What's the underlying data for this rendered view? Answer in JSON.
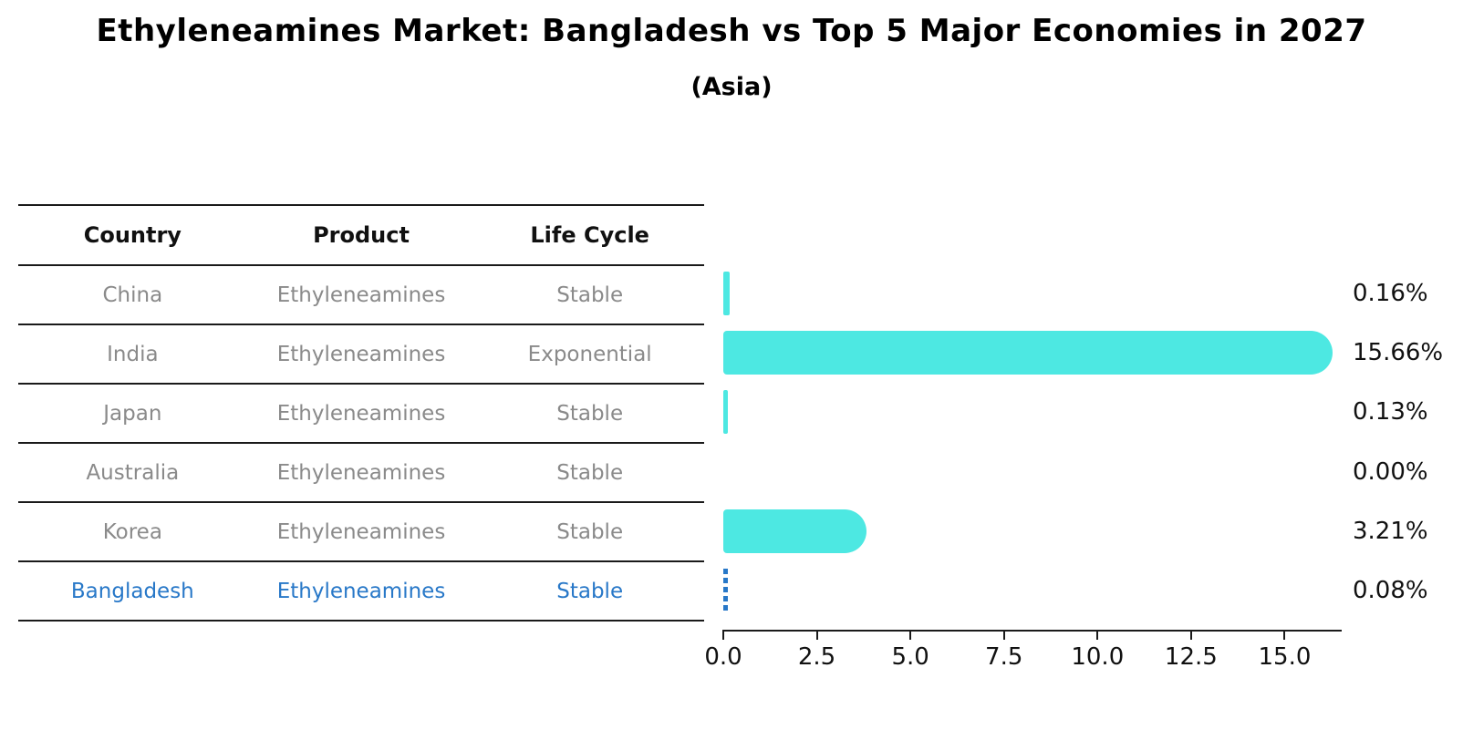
{
  "title": "Ethyleneamines Market: Bangladesh vs Top 5 Major Economies in 2027",
  "subtitle": "(Asia)",
  "colors": {
    "bar": "#4de8e2",
    "highlight": "#2878c8",
    "muted_text": "#8a8a8a",
    "text": "#111111",
    "line": "#1a1a1a"
  },
  "table": {
    "headers": [
      "Country",
      "Product",
      "Life Cycle"
    ],
    "rows": [
      {
        "country": "China",
        "product": "Ethyleneamines",
        "life_cycle": "Stable",
        "highlighted": false
      },
      {
        "country": "India",
        "product": "Ethyleneamines",
        "life_cycle": "Exponential",
        "highlighted": false
      },
      {
        "country": "Japan",
        "product": "Ethyleneamines",
        "life_cycle": "Stable",
        "highlighted": false
      },
      {
        "country": "Australia",
        "product": "Ethyleneamines",
        "life_cycle": "Stable",
        "highlighted": false
      },
      {
        "country": "Korea",
        "product": "Ethyleneamines",
        "life_cycle": "Stable",
        "highlighted": false
      },
      {
        "country": "Bangladesh",
        "product": "Ethyleneamines",
        "life_cycle": "Stable",
        "highlighted": true
      }
    ]
  },
  "chart_data": {
    "type": "bar",
    "orientation": "horizontal",
    "title": "Ethyleneamines Market: Bangladesh vs Top 5 Major Economies in 2027 (Asia)",
    "categories": [
      "China",
      "India",
      "Japan",
      "Australia",
      "Korea",
      "Bangladesh"
    ],
    "values": [
      0.16,
      15.66,
      0.13,
      0.0,
      3.21,
      0.08
    ],
    "value_labels": [
      "0.16%",
      "15.66%",
      "0.13%",
      "0.00%",
      "3.21%",
      "0.08%"
    ],
    "xlabel": "",
    "ylabel": "",
    "x_ticks": [
      "0.0",
      "2.5",
      "5.0",
      "7.5",
      "10.0",
      "12.5",
      "15.0"
    ],
    "xlim": [
      0,
      16.5
    ],
    "grid": false,
    "legend": false,
    "highlight_index": 5,
    "highlight_style": "dashed-outline"
  }
}
